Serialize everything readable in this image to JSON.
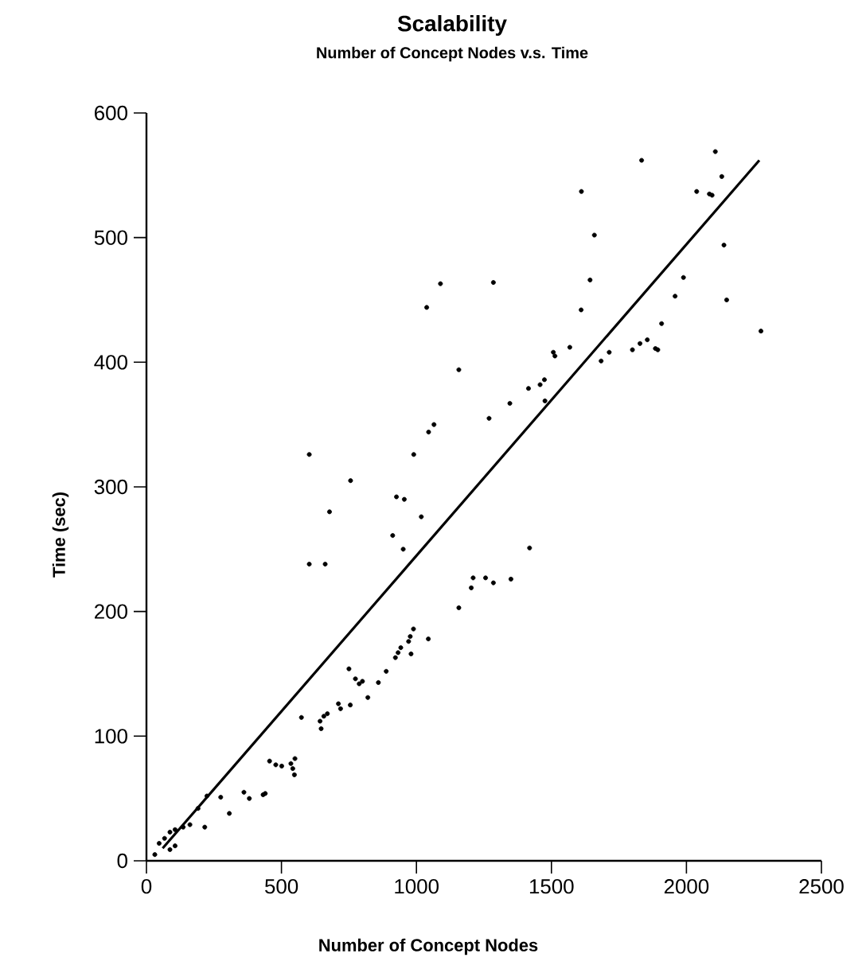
{
  "chart_data": {
    "type": "scatter",
    "title": "Scalability",
    "subtitle": "Number of Concept Nodes v.s. Time",
    "xlabel": "Number of Concept Nodes",
    "ylabel": "Time (sec)",
    "xlim": [
      0,
      2500
    ],
    "ylim": [
      0,
      600
    ],
    "xticks": [
      0,
      500,
      1000,
      1500,
      2000,
      2500
    ],
    "yticks": [
      0,
      100,
      200,
      300,
      400,
      500,
      600
    ],
    "series": [
      {
        "marker": "circle",
        "color": "#000000",
        "x": [
          603,
          756,
          926,
          955,
          1038,
          1089,
          1157,
          990,
          1045,
          1065,
          1285,
          1269,
          1346,
          1415,
          1458,
          1474,
          1476,
          1507,
          1513,
          1568,
          1611,
          1610,
          1643,
          1659,
          1684,
          1714,
          1800,
          1828,
          1855,
          1885,
          1894,
          1834,
          1908,
          1958,
          1989,
          2038,
          2085,
          2095,
          2107,
          2131,
          2139,
          2149,
          2276,
          603,
          662,
          678,
          1018,
          912,
          951,
          1157,
          1203,
          1210,
          1256,
          1285,
          1350,
          1419,
          989,
          977,
          971,
          1044,
          942,
          932,
          922,
          980,
          888,
          859,
          820,
          800,
          774,
          788,
          750,
          755,
          711,
          719,
          670,
          657,
          643,
          647,
          574,
          550,
          535,
          542,
          548,
          456,
          479,
          501,
          440,
          432,
          361,
          381,
          307,
          275,
          224,
          216,
          191,
          161,
          136,
          106,
          87,
          67,
          47,
          31,
          87,
          106
        ],
        "values": [
          326,
          305,
          292,
          290,
          444,
          463,
          394,
          326,
          344,
          350,
          464,
          355,
          367,
          379,
          382,
          386,
          369,
          408,
          405,
          412,
          537,
          442,
          466,
          502,
          401,
          408,
          410,
          415,
          418,
          411,
          410,
          562,
          431,
          453,
          468,
          537,
          535,
          534,
          569,
          549,
          494,
          450,
          425,
          238,
          238,
          280,
          276,
          261,
          250,
          203,
          219,
          227,
          227,
          223,
          226,
          251,
          186,
          180,
          176,
          178,
          171,
          167,
          163,
          166,
          152,
          143,
          131,
          144,
          146,
          142,
          154,
          125,
          126,
          122,
          118,
          116,
          112,
          106,
          115,
          82,
          78,
          74,
          69,
          80,
          77,
          76,
          54,
          53,
          55,
          50,
          38,
          51,
          52,
          27,
          42,
          29,
          27,
          25,
          23,
          18,
          14,
          5,
          9,
          12
        ]
      },
      {
        "type": "line",
        "marker": "none",
        "color": "#000000",
        "line_style": "solid",
        "x": [
          60,
          2270
        ],
        "values": [
          10,
          562
        ]
      }
    ]
  }
}
